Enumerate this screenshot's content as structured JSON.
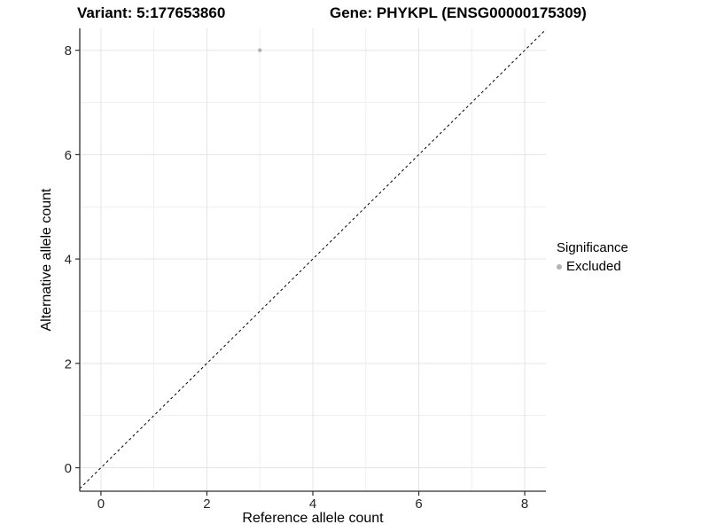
{
  "header": {
    "variant_title": "Variant: 5:177653860",
    "gene_title": "Gene: PHYKPL (ENSG00000175309)"
  },
  "chart_data": {
    "type": "scatter",
    "titles": [
      "Variant: 5:177653860",
      "Gene: PHYKPL (ENSG00000175309)"
    ],
    "xlabel": "Reference allele count",
    "ylabel": "Alternative allele count",
    "xlim": [
      -0.4,
      8.4
    ],
    "ylim": [
      -0.45,
      8.42
    ],
    "xticks": [
      0,
      2,
      4,
      6,
      8
    ],
    "yticks": [
      0,
      2,
      4,
      6,
      8
    ],
    "xminor": [
      1,
      3,
      5,
      7
    ],
    "yminor": [
      1,
      3,
      5,
      7
    ],
    "grid": {
      "shown": true,
      "major_color": "#e5e5e5",
      "minor_color": "#f0f0f0"
    },
    "identity_line": {
      "slope": 1,
      "intercept": 0,
      "style": "dashed",
      "color": "#000000"
    },
    "points": [
      {
        "x": 3,
        "y": 8,
        "series": "Excluded",
        "color": "#b3b3b3",
        "radius": 2.2
      }
    ],
    "legend": {
      "title": "Significance",
      "position": "right",
      "entries": [
        {
          "label": "Excluded",
          "color": "#b3b3b3"
        }
      ]
    },
    "axis_color": "#2e2e2e",
    "tick_label_color": "#262626"
  }
}
